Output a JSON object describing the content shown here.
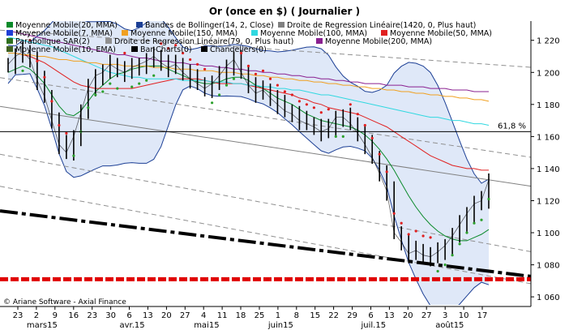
{
  "chart_data": {
    "type": "line",
    "title": "Or (once en $)  ( Journalier )",
    "credit": "© Ariane Software - Axial Finance",
    "legend": [
      {
        "label": "Moyenne Mobile(20, MMA)",
        "color": "#0a8a2a"
      },
      {
        "label": "Bandes de Bollinger(14, 2, Close)",
        "color": "#1c3f95"
      },
      {
        "label": "Droite de Regression Linéaire(1420, 0, Plus haut)",
        "color": "#808080"
      },
      {
        "label": "Moyenne Mobile(7, MMA)",
        "color": "#1f3fd6"
      },
      {
        "label": "Moyenne Mobile(150, MMA)",
        "color": "#f0a020"
      },
      {
        "label": "Moyenne Mobile(100, MMA)",
        "color": "#30d8e0"
      },
      {
        "label": "Moyenne Mobile(50, MMA)",
        "color": "#e02020"
      },
      {
        "label": "Parabolique SAR(2)",
        "color": "#2f6f1f"
      },
      {
        "label": "Droite de Regression Linéaire(79, 0, Plus haut)",
        "color": "#909090"
      },
      {
        "label": "Moyenne Mobile(200, MMA)",
        "color": "#8a2090"
      },
      {
        "label": "Moyenne Mobile(10, EMA)",
        "color": "#406020"
      },
      {
        "label": "Bar-Charts(0)",
        "color": "#000000"
      },
      {
        "label": "Chandeliers(0)",
        "color": "#000000"
      }
    ],
    "y_axis": {
      "ticks": [
        "1 220",
        "1 200",
        "1 180",
        "1 160",
        "1 140",
        "1 120",
        "1 100",
        "1 080",
        "1 060"
      ],
      "tick_values": [
        1220,
        1200,
        1180,
        1160,
        1140,
        1120,
        1100,
        1080,
        1060
      ],
      "ylim": [
        1055,
        1232
      ]
    },
    "x_axis": {
      "ticks": [
        "23",
        "2",
        "9",
        "16",
        "23",
        "30",
        "6",
        "13",
        "20",
        "27",
        "4",
        "11",
        "18",
        "25",
        "1",
        "8",
        "15",
        "22",
        "29",
        "6",
        "13",
        "20",
        "27",
        "3",
        "10",
        "17"
      ],
      "months": [
        "mars15",
        "avr.15",
        "mai15",
        "juin15",
        "juil.15",
        "août15"
      ]
    },
    "horizontal_lines": [
      {
        "value": 1163,
        "label": "61,8 %",
        "color": "#000000"
      },
      {
        "value": 1071,
        "label": "",
        "color": "#e00000"
      }
    ],
    "series": [
      {
        "name": "Cours",
        "color": "#000000",
        "y": [
          1205,
          1210,
          1213,
          1208,
          1195,
          1185,
          1170,
          1155,
          1150,
          1160,
          1175,
          1190,
          1198,
          1200,
          1205,
          1202,
          1200,
          1203,
          1205,
          1207,
          1210,
          1206,
          1203,
          1205,
          1200,
          1196,
          1193,
          1190,
          1193,
          1198,
          1204,
          1208,
          1200,
          1192,
          1187,
          1189,
          1184,
          1180,
          1176,
          1174,
          1170,
          1168,
          1166,
          1163,
          1165,
          1172,
          1172,
          1168,
          1162,
          1155,
          1147,
          1137,
          1126,
          1100,
          1094,
          1087,
          1089,
          1086,
          1085,
          1088,
          1092,
          1098,
          1105,
          1112,
          1118,
          1120,
          1133
        ]
      },
      {
        "name": "Moyenne Mobile(20, MMA)",
        "color": "#0a8a2a",
        "y": [
          1200,
          1202,
          1204,
          1202,
          1198,
          1193,
          1186,
          1179,
          1174,
          1173,
          1176,
          1182,
          1188,
          1192,
          1196,
          1199,
          1200,
          1202,
          1203,
          1204,
          1204,
          1204,
          1202,
          1200,
          1198,
          1196,
          1194,
          1193,
          1193,
          1194,
          1196,
          1197,
          1197,
          1195,
          1192,
          1190,
          1187,
          1184,
          1182,
          1180,
          1177,
          1174,
          1172,
          1170,
          1169,
          1168,
          1167,
          1166,
          1164,
          1161,
          1157,
          1152,
          1146,
          1139,
          1131,
          1123,
          1116,
          1110,
          1105,
          1101,
          1098,
          1096,
          1095,
          1095,
          1097,
          1099,
          1102
        ]
      },
      {
        "name": "Moyenne Mobile(50, MMA)",
        "color": "#e02020",
        "y": [
          1212,
          1212,
          1211,
          1210,
          1208,
          1206,
          1203,
          1200,
          1197,
          1194,
          1192,
          1191,
          1190,
          1190,
          1190,
          1190,
          1190,
          1190,
          1191,
          1192,
          1193,
          1194,
          1195,
          1196,
          1196,
          1196,
          1196,
          1195,
          1194,
          1193,
          1193,
          1193,
          1193,
          1192,
          1191,
          1190,
          1189,
          1188,
          1187,
          1186,
          1184,
          1183,
          1181,
          1180,
          1178,
          1177,
          1176,
          1175,
          1174,
          1172,
          1170,
          1168,
          1166,
          1163,
          1160,
          1157,
          1154,
          1151,
          1148,
          1146,
          1144,
          1142,
          1141,
          1140,
          1140,
          1139,
          1139
        ]
      },
      {
        "name": "Moyenne Mobile(100, MMA)",
        "color": "#30d8e0",
        "y": [
          1222,
          1221,
          1220,
          1219,
          1218,
          1217,
          1216,
          1214,
          1212,
          1210,
          1208,
          1206,
          1204,
          1202,
          1200,
          1199,
          1198,
          1197,
          1197,
          1196,
          1196,
          1196,
          1196,
          1196,
          1195,
          1195,
          1195,
          1195,
          1194,
          1194,
          1194,
          1193,
          1193,
          1192,
          1192,
          1191,
          1191,
          1190,
          1190,
          1189,
          1189,
          1188,
          1187,
          1186,
          1186,
          1185,
          1184,
          1183,
          1182,
          1181,
          1180,
          1179,
          1178,
          1177,
          1176,
          1175,
          1174,
          1173,
          1172,
          1172,
          1171,
          1170,
          1170,
          1169,
          1168,
          1168,
          1167
        ]
      },
      {
        "name": "Moyenne Mobile(150, MMA)",
        "color": "#f0a020",
        "y": [
          1212,
          1212,
          1211,
          1211,
          1210,
          1210,
          1209,
          1208,
          1208,
          1207,
          1207,
          1206,
          1206,
          1205,
          1205,
          1205,
          1204,
          1204,
          1204,
          1204,
          1203,
          1203,
          1203,
          1202,
          1202,
          1202,
          1201,
          1201,
          1201,
          1200,
          1200,
          1200,
          1199,
          1199,
          1198,
          1198,
          1197,
          1197,
          1196,
          1196,
          1195,
          1195,
          1194,
          1194,
          1193,
          1193,
          1192,
          1192,
          1191,
          1191,
          1190,
          1190,
          1189,
          1189,
          1188,
          1188,
          1187,
          1187,
          1186,
          1186,
          1185,
          1185,
          1184,
          1184,
          1183,
          1183,
          1182
        ]
      },
      {
        "name": "Moyenne Mobile(200, MMA)",
        "color": "#8a2090",
        "y": [
          1226,
          1225,
          1224,
          1223,
          1222,
          1221,
          1220,
          1219,
          1218,
          1217,
          1216,
          1215,
          1214,
          1213,
          1212,
          1211,
          1211,
          1210,
          1209,
          1209,
          1208,
          1207,
          1207,
          1206,
          1206,
          1205,
          1205,
          1204,
          1204,
          1203,
          1203,
          1202,
          1202,
          1201,
          1201,
          1200,
          1200,
          1199,
          1199,
          1198,
          1198,
          1197,
          1197,
          1196,
          1196,
          1195,
          1195,
          1194,
          1194,
          1193,
          1193,
          1193,
          1192,
          1192,
          1192,
          1191,
          1191,
          1191,
          1190,
          1190,
          1190,
          1189,
          1189,
          1189,
          1188,
          1188,
          1188
        ]
      }
    ],
    "regression_lines": [
      {
        "name": "Droite de Regression Linéaire(1420, 0, Plus haut)",
        "x": [
          0,
          66
        ],
        "y": [
          1178,
          1133
        ],
        "color": "#808080",
        "style": "solid"
      },
      {
        "name": "Droite de Regression Linéaire(79, 0, Plus haut)",
        "x": [
          0,
          66
        ],
        "y": [
          1226,
          1205
        ],
        "color": "#909090",
        "style": "dashed"
      },
      {
        "name": "Canal",
        "x": [
          0,
          66
        ],
        "y": [
          1196,
          1151
        ],
        "color": "#909090",
        "style": "dashed"
      },
      {
        "name": "Canal",
        "x": [
          0,
          66
        ],
        "y": [
          1148,
          1093
        ],
        "color": "#909090",
        "style": "dashed"
      },
      {
        "name": "Canal",
        "x": [
          0,
          66
        ],
        "y": [
          1128,
          1073
        ],
        "color": "#909090",
        "style": "dashed"
      },
      {
        "name": "Support",
        "x": [
          0,
          66
        ],
        "y": [
          1113,
          1076
        ],
        "color": "#000000",
        "style": "dashdot"
      }
    ]
  }
}
